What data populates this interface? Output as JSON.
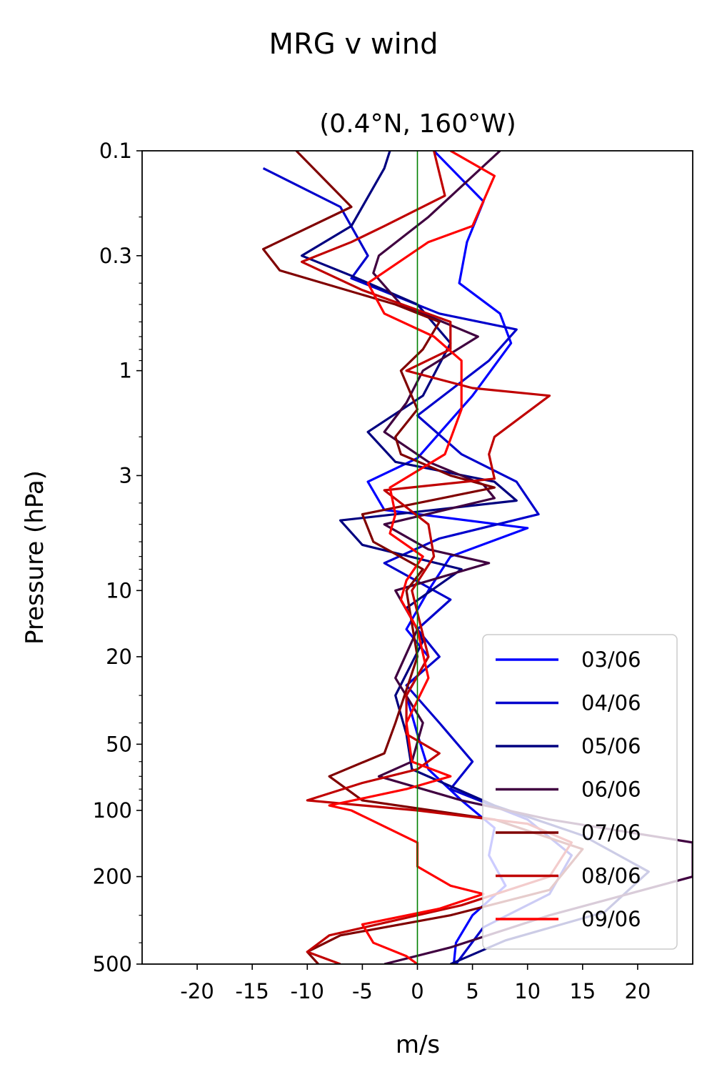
{
  "chart_data": {
    "type": "line",
    "suptitle": "MRG v wind",
    "title": "(0.4°N, 160°W)",
    "xlabel": "m/s",
    "ylabel": "Pressure (hPa)",
    "xlim": [
      -25,
      25
    ],
    "ylim": [
      500,
      0.1
    ],
    "yscale": "log",
    "xticks": [
      {
        "value": -20,
        "label": "-20"
      },
      {
        "value": -15,
        "label": "-15"
      },
      {
        "value": -10,
        "label": "-10"
      },
      {
        "value": -5,
        "label": "-5"
      },
      {
        "value": 0,
        "label": "0"
      },
      {
        "value": 5,
        "label": "5"
      },
      {
        "value": 10,
        "label": "10"
      },
      {
        "value": 15,
        "label": "15"
      },
      {
        "value": 20,
        "label": "20"
      }
    ],
    "yticks": [
      {
        "value": 0.1,
        "label": "0.1"
      },
      {
        "value": 0.3,
        "label": "0.3"
      },
      {
        "value": 1,
        "label": "1"
      },
      {
        "value": 3,
        "label": "3"
      },
      {
        "value": 10,
        "label": "10"
      },
      {
        "value": 20,
        "label": "20"
      },
      {
        "value": 50,
        "label": "50"
      },
      {
        "value": 100,
        "label": "100"
      },
      {
        "value": 200,
        "label": "200"
      },
      {
        "value": 500,
        "label": "500"
      }
    ],
    "reference_line": {
      "x": 0,
      "color": "#008000"
    },
    "legend_position": "lower right",
    "grid": false,
    "series": [
      {
        "name": "03/06",
        "color": "#0000ff",
        "points": [
          [
            1.5,
            0.1
          ],
          [
            6,
            0.17
          ],
          [
            4.5,
            0.26
          ],
          [
            3.8,
            0.4
          ],
          [
            7.5,
            0.55
          ],
          [
            8.5,
            0.75
          ],
          [
            5,
            1.3
          ],
          [
            0,
            2.5
          ],
          [
            -4.5,
            3.2
          ],
          [
            -3,
            4.3
          ],
          [
            10,
            5.2
          ],
          [
            3,
            7
          ],
          [
            1,
            10
          ],
          [
            -1,
            15
          ],
          [
            1,
            20
          ],
          [
            -1,
            30
          ],
          [
            0,
            45
          ],
          [
            1,
            65
          ],
          [
            4,
            90
          ],
          [
            7,
            120
          ],
          [
            6.5,
            160
          ],
          [
            8,
            220
          ],
          [
            5,
            300
          ],
          [
            3.5,
            400
          ],
          [
            3.3,
            500
          ]
        ]
      },
      {
        "name": "04/06",
        "color": "#0000cc",
        "points": [
          [
            -14,
            0.12
          ],
          [
            -7,
            0.18
          ],
          [
            -4.5,
            0.3
          ],
          [
            -6,
            0.38
          ],
          [
            2,
            0.55
          ],
          [
            9,
            0.65
          ],
          [
            6.5,
            0.9
          ],
          [
            0,
            1.6
          ],
          [
            4,
            2.4
          ],
          [
            9,
            3.2
          ],
          [
            11,
            4.5
          ],
          [
            2,
            5.8
          ],
          [
            -3,
            7.5
          ],
          [
            3,
            11
          ],
          [
            0,
            15
          ],
          [
            2,
            20
          ],
          [
            -1,
            27
          ],
          [
            2,
            40
          ],
          [
            5,
            60
          ],
          [
            3,
            80
          ],
          [
            10,
            110
          ],
          [
            14,
            160
          ],
          [
            12,
            240
          ],
          [
            6,
            340
          ],
          [
            3.5,
            500
          ]
        ]
      },
      {
        "name": "05/06",
        "color": "#000080",
        "points": [
          [
            -2.5,
            0.1
          ],
          [
            -3,
            0.12
          ],
          [
            -6,
            0.22
          ],
          [
            -10.5,
            0.3
          ],
          [
            -6,
            0.37
          ],
          [
            0,
            0.5
          ],
          [
            3,
            0.75
          ],
          [
            0.5,
            1.3
          ],
          [
            -4.5,
            1.9
          ],
          [
            -2,
            2.6
          ],
          [
            7,
            3.2
          ],
          [
            9,
            3.9
          ],
          [
            -7,
            4.8
          ],
          [
            -5,
            6.2
          ],
          [
            4,
            8
          ],
          [
            -1,
            12
          ],
          [
            0.5,
            17
          ],
          [
            -2,
            30
          ],
          [
            -1,
            45
          ],
          [
            -0.5,
            65
          ],
          [
            7,
            95
          ],
          [
            15,
            130
          ],
          [
            21,
            190
          ],
          [
            17,
            290
          ],
          [
            8,
            390
          ],
          [
            3,
            500
          ]
        ]
      },
      {
        "name": "06/06",
        "color": "#400040",
        "points": [
          [
            7.5,
            0.1
          ],
          [
            1,
            0.2
          ],
          [
            -3.5,
            0.3
          ],
          [
            -4,
            0.36
          ],
          [
            -1.5,
            0.5
          ],
          [
            5.5,
            0.7
          ],
          [
            0.5,
            1.0
          ],
          [
            -1,
            1.4
          ],
          [
            -3,
            1.9
          ],
          [
            1,
            2.6
          ],
          [
            6,
            3.3
          ],
          [
            7,
            3.8
          ],
          [
            -3,
            5
          ],
          [
            1,
            6.5
          ],
          [
            6.5,
            7.5
          ],
          [
            -2,
            10
          ],
          [
            0,
            15
          ],
          [
            -2,
            25
          ],
          [
            0.5,
            40
          ],
          [
            -0.5,
            60
          ],
          [
            -3.5,
            70
          ],
          [
            4,
            90
          ],
          [
            12,
            110
          ],
          [
            25,
            140
          ],
          [
            25,
            200
          ],
          [
            12,
            300
          ],
          [
            3,
            420
          ],
          [
            -3,
            500
          ]
        ]
      },
      {
        "name": "07/06",
        "color": "#800000",
        "points": [
          [
            -11,
            0.1
          ],
          [
            -6,
            0.18
          ],
          [
            -14,
            0.28
          ],
          [
            -12.5,
            0.35
          ],
          [
            -2,
            0.5
          ],
          [
            2,
            0.6
          ],
          [
            0.5,
            0.8
          ],
          [
            -1.5,
            1.0
          ],
          [
            0,
            1.5
          ],
          [
            -2,
            2.0
          ],
          [
            -1.5,
            2.4
          ],
          [
            3,
            3.0
          ],
          [
            7,
            3.4
          ],
          [
            -5,
            4.5
          ],
          [
            -4,
            6
          ],
          [
            0.5,
            8
          ],
          [
            -1,
            10
          ],
          [
            0,
            20
          ],
          [
            -2,
            40
          ],
          [
            -3,
            55
          ],
          [
            -8,
            70
          ],
          [
            -5,
            90
          ],
          [
            7,
            110
          ],
          [
            15,
            150
          ],
          [
            12,
            230
          ],
          [
            3,
            300
          ],
          [
            -7,
            370
          ],
          [
            -10,
            440
          ],
          [
            -9,
            500
          ]
        ]
      },
      {
        "name": "08/06",
        "color": "#c00000",
        "points": [
          [
            1.5,
            0.1
          ],
          [
            2.5,
            0.16
          ],
          [
            -3,
            0.22
          ],
          [
            -6,
            0.26
          ],
          [
            -10.5,
            0.32
          ],
          [
            -5,
            0.43
          ],
          [
            3,
            0.6
          ],
          [
            3,
            0.8
          ],
          [
            -1,
            1.0
          ],
          [
            5,
            1.2
          ],
          [
            12,
            1.3
          ],
          [
            7,
            2.0
          ],
          [
            6.5,
            2.4
          ],
          [
            7,
            3.1
          ],
          [
            -3,
            3.5
          ],
          [
            1,
            5
          ],
          [
            1.5,
            7
          ],
          [
            -0.5,
            10
          ],
          [
            1,
            20
          ],
          [
            -1,
            30
          ],
          [
            -1,
            45
          ],
          [
            2,
            55
          ],
          [
            0,
            65
          ],
          [
            -5,
            75
          ],
          [
            -10,
            90
          ],
          [
            0,
            100
          ],
          [
            10,
            115
          ],
          [
            14,
            140
          ],
          [
            12,
            200
          ],
          [
            4,
            270
          ],
          [
            -8,
            370
          ],
          [
            -10,
            440
          ],
          [
            -7,
            500
          ]
        ]
      },
      {
        "name": "09/06",
        "color": "#ff0000",
        "points": [
          [
            3,
            0.1
          ],
          [
            7,
            0.13
          ],
          [
            5,
            0.22
          ],
          [
            1,
            0.26
          ],
          [
            -4.5,
            0.4
          ],
          [
            -3,
            0.55
          ],
          [
            1.5,
            0.7
          ],
          [
            4,
            0.9
          ],
          [
            4,
            1.5
          ],
          [
            2.5,
            2.4
          ],
          [
            -2.5,
            3.4
          ],
          [
            -2,
            4.5
          ],
          [
            -2.5,
            5.5
          ],
          [
            0.5,
            7
          ],
          [
            -1,
            9
          ],
          [
            -1.5,
            11
          ],
          [
            0,
            15
          ],
          [
            1,
            25
          ],
          [
            -1,
            40
          ],
          [
            -0.5,
            60
          ],
          [
            3,
            70
          ],
          [
            -1,
            80
          ],
          [
            -8,
            95
          ],
          [
            -6,
            100
          ],
          [
            0,
            140
          ],
          [
            0,
            180
          ],
          [
            3,
            220
          ],
          [
            6,
            240
          ],
          [
            2,
            280
          ],
          [
            -5,
            330
          ],
          [
            -4,
            400
          ],
          [
            -1,
            460
          ],
          [
            0,
            500
          ]
        ]
      }
    ]
  }
}
